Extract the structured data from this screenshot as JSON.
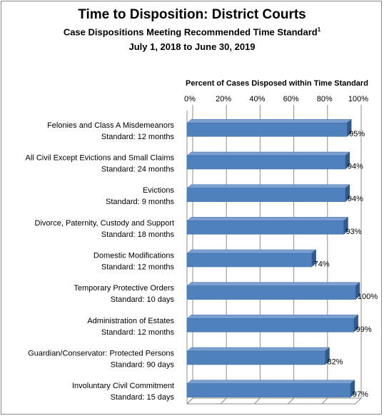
{
  "title": "Time to Disposition:  District Courts",
  "subtitle": "Case Dispositions Meeting Recommended Time Standard",
  "subtitle_footnote": "1",
  "date_range": "July 1, 2018 to June 30, 2019",
  "chart_data": {
    "type": "bar",
    "orientation": "horizontal",
    "xlabel": "Percent of Cases Disposed  within Time Standard",
    "xlim": [
      0,
      100
    ],
    "ticks": [
      "0%",
      "20%",
      "40%",
      "60%",
      "80%",
      "100%"
    ],
    "categories": [
      {
        "name": "Felonies and Class A Misdemeanors",
        "standard": "Standard: 12 months"
      },
      {
        "name": "All Civil Except Evictions and Small Claims",
        "standard": "Standard: 24 months"
      },
      {
        "name": "Evictions",
        "standard": "Standard: 9 months"
      },
      {
        "name": "Divorce, Paternity, Custody and Support",
        "standard": "Standard: 18 months"
      },
      {
        "name": "Domestic Modifications",
        "standard": "Standard: 12 months"
      },
      {
        "name": "Temporary Protective Orders",
        "standard": "Standard: 10 days"
      },
      {
        "name": "Administration of Estates",
        "standard": "Standard: 12 months"
      },
      {
        "name": "Guardian/Conservator: Protected Persons",
        "standard": "Standard: 90 days"
      },
      {
        "name": "Involuntary Civil Commitment",
        "standard": "Standard: 15 days"
      }
    ],
    "values": [
      95,
      94,
      94,
      93,
      74,
      100,
      99,
      82,
      97
    ],
    "value_labels": [
      "95%",
      "94%",
      "94%",
      "93%",
      "74%",
      "100%",
      "99%",
      "82%",
      "97%"
    ],
    "bar_color": "#4f81bd",
    "grid": true,
    "legend": "none"
  }
}
